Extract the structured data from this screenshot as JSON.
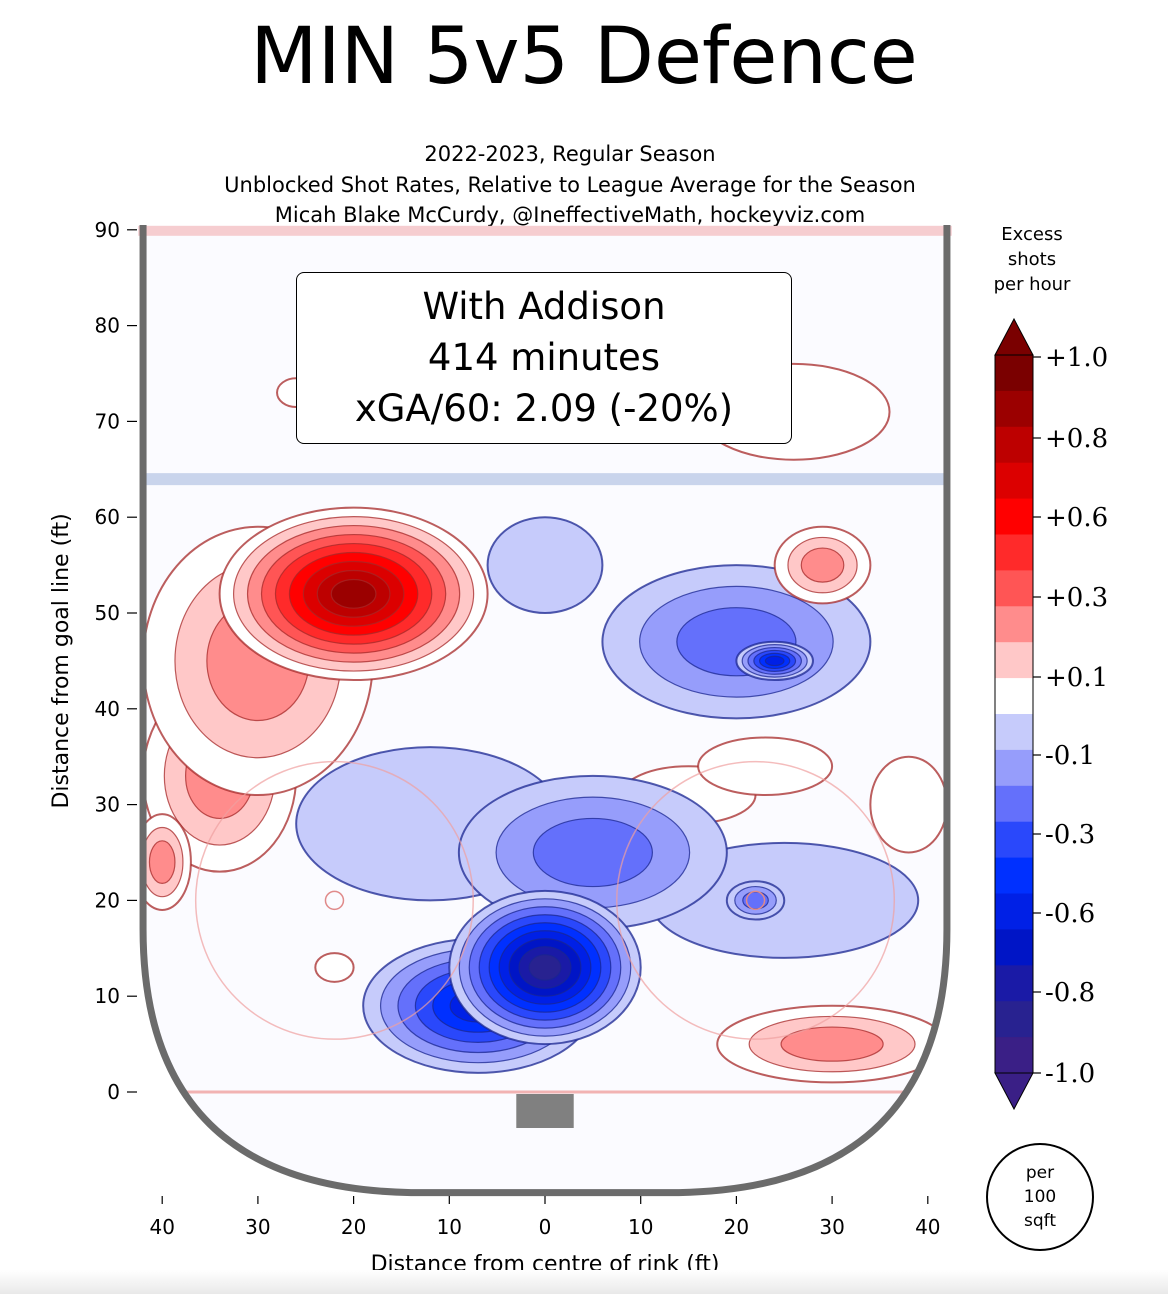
{
  "title": "MIN 5v5 Defence",
  "subtitle_lines": [
    "2022-2023, Regular Season",
    "Unblocked Shot Rates, Relative to League Average for the Season",
    "Micah Blake McCurdy, @IneffectiveMath, hockeyviz.com"
  ],
  "legend": {
    "line1": "With Addison",
    "line2": "414 minutes",
    "line3": "xGA/60: 2.09 (-20%)"
  },
  "colorbar": {
    "title": [
      "Excess",
      "shots",
      "per hour"
    ],
    "ticks": [
      "+1.0",
      "+0.8",
      "+0.6",
      "+0.3",
      "+0.1",
      "-0.1",
      "-0.3",
      "-0.6",
      "-0.8",
      "-1.0"
    ],
    "tick_values": [
      1.0,
      0.8,
      0.6,
      0.3,
      0.1,
      -0.1,
      -0.3,
      -0.6,
      -0.8,
      -1.0
    ],
    "colors": [
      "#7a0000",
      "#9b0000",
      "#bd0000",
      "#dc0000",
      "#ff0000",
      "#ff2a2a",
      "#ff5555",
      "#ff8c8c",
      "#ffc8c8",
      "#ffffff",
      "#c6cbfb",
      "#969dfb",
      "#6470fb",
      "#2a48fb",
      "#0030ff",
      "#0020e6",
      "#0015c6",
      "#1a1aa6",
      "#282290",
      "#3a1f86"
    ],
    "unit": [
      "per",
      "100",
      "sqft"
    ]
  },
  "chart_data": {
    "type": "heatmap",
    "title": "MIN 5v5 Defence",
    "xlabel": "Distance from centre of rink (ft)",
    "ylabel": "Distance from goal line (ft)",
    "xlim": [
      -42,
      42
    ],
    "ylim": [
      -10,
      90
    ],
    "x_ticks": [
      -40,
      -30,
      -20,
      -10,
      0,
      10,
      20,
      30,
      40
    ],
    "x_tick_labels": [
      "40",
      "30",
      "20",
      "10",
      "0",
      "10",
      "20",
      "30",
      "40"
    ],
    "y_ticks": [
      0,
      10,
      20,
      30,
      40,
      50,
      60,
      70,
      80,
      90
    ],
    "y_tick_labels": [
      "0",
      "10",
      "20",
      "30",
      "40",
      "50",
      "60",
      "70",
      "80",
      "90"
    ],
    "grid": false,
    "blobs": [
      {
        "x": -20,
        "y": 52,
        "rx": 14,
        "ry": 9,
        "value": 0.9
      },
      {
        "x": -30,
        "y": 45,
        "rx": 12,
        "ry": 14,
        "value": 0.35
      },
      {
        "x": -34,
        "y": 33,
        "rx": 8,
        "ry": 10,
        "value": 0.25
      },
      {
        "x": -40,
        "y": 24,
        "rx": 3,
        "ry": 5,
        "value": 0.3
      },
      {
        "x": 29,
        "y": 55,
        "rx": 5,
        "ry": 4,
        "value": 0.35
      },
      {
        "x": 26,
        "y": 71,
        "rx": 10,
        "ry": 5,
        "value": 0.12
      },
      {
        "x": -26,
        "y": 73,
        "rx": 2,
        "ry": 1.5,
        "value": 0.1
      },
      {
        "x": 15,
        "y": 31,
        "rx": 7,
        "ry": 3,
        "value": 0.15
      },
      {
        "x": 23,
        "y": 34,
        "rx": 7,
        "ry": 3,
        "value": 0.15
      },
      {
        "x": 38,
        "y": 30,
        "rx": 4,
        "ry": 5,
        "value": 0.12
      },
      {
        "x": -22,
        "y": 13,
        "rx": 2,
        "ry": 1.5,
        "value": 0.12
      },
      {
        "x": 30,
        "y": 5,
        "rx": 12,
        "ry": 4,
        "value": 0.3
      },
      {
        "x": 0,
        "y": 13,
        "rx": 10,
        "ry": 8,
        "value": -0.9
      },
      {
        "x": -7,
        "y": 9,
        "rx": 12,
        "ry": 7,
        "value": -0.55
      },
      {
        "x": 5,
        "y": 25,
        "rx": 14,
        "ry": 8,
        "value": -0.3
      },
      {
        "x": 20,
        "y": 47,
        "rx": 14,
        "ry": 8,
        "value": -0.3
      },
      {
        "x": 24,
        "y": 45,
        "rx": 4,
        "ry": 2,
        "value": -0.55
      },
      {
        "x": 22,
        "y": 20,
        "rx": 3,
        "ry": 2,
        "value": -0.3
      },
      {
        "x": 0,
        "y": 55,
        "rx": 6,
        "ry": 5,
        "value": -0.12
      },
      {
        "x": -12,
        "y": 28,
        "rx": 14,
        "ry": 8,
        "value": -0.12
      },
      {
        "x": 25,
        "y": 20,
        "rx": 14,
        "ry": 6,
        "value": -0.15
      }
    ]
  }
}
